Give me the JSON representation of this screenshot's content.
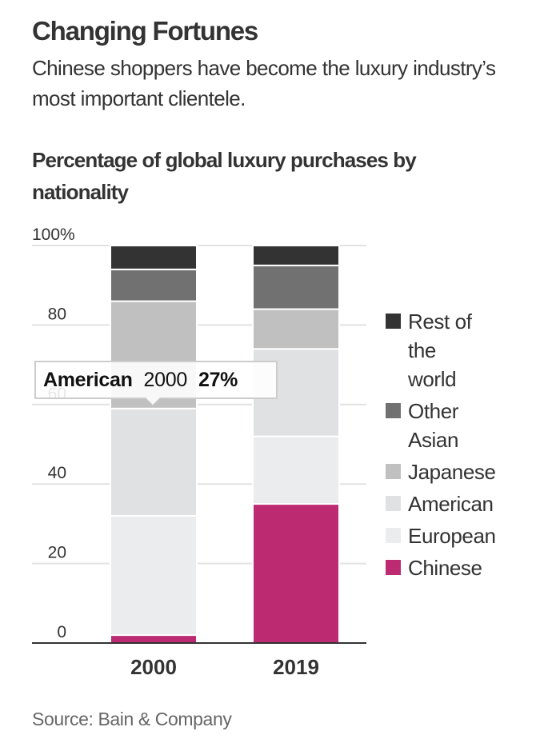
{
  "header": {
    "title": "Changing Fortunes",
    "subtitle": "Chinese shoppers have become the luxury industry’s most important clientele.",
    "chart_heading": "Percentage of global luxury purchases by nationality"
  },
  "source": "Source: Bain & Company",
  "tooltip": {
    "series": "American",
    "category": "2000",
    "value": "27%"
  },
  "chart_data": {
    "type": "bar",
    "stacked": true,
    "title": "Percentage of global luxury purchases by nationality",
    "xlabel": "",
    "ylabel": "",
    "categories": [
      "2000",
      "2019"
    ],
    "ylim": [
      0,
      100
    ],
    "yticks": [
      0,
      20,
      40,
      60,
      80,
      100
    ],
    "ytick_labels": [
      "0",
      "20",
      "40",
      "60",
      "80",
      "100%"
    ],
    "grid": true,
    "legend_position": "right",
    "series": [
      {
        "name": "Chinese",
        "color": "#bc2a72",
        "values": [
          2,
          35
        ]
      },
      {
        "name": "European",
        "color": "#ebeced",
        "values": [
          30,
          17
        ]
      },
      {
        "name": "American",
        "color": "#e0e1e3",
        "values": [
          27,
          22
        ]
      },
      {
        "name": "Japanese",
        "color": "#c0c0c0",
        "values": [
          27,
          10
        ]
      },
      {
        "name": "Other Asian",
        "color": "#717171",
        "values": [
          8,
          11
        ]
      },
      {
        "name": "Rest of the world",
        "color": "#333333",
        "values": [
          6,
          5
        ]
      }
    ],
    "legend_order": [
      "Rest of the world",
      "Other Asian",
      "Japanese",
      "American",
      "European",
      "Chinese"
    ]
  }
}
